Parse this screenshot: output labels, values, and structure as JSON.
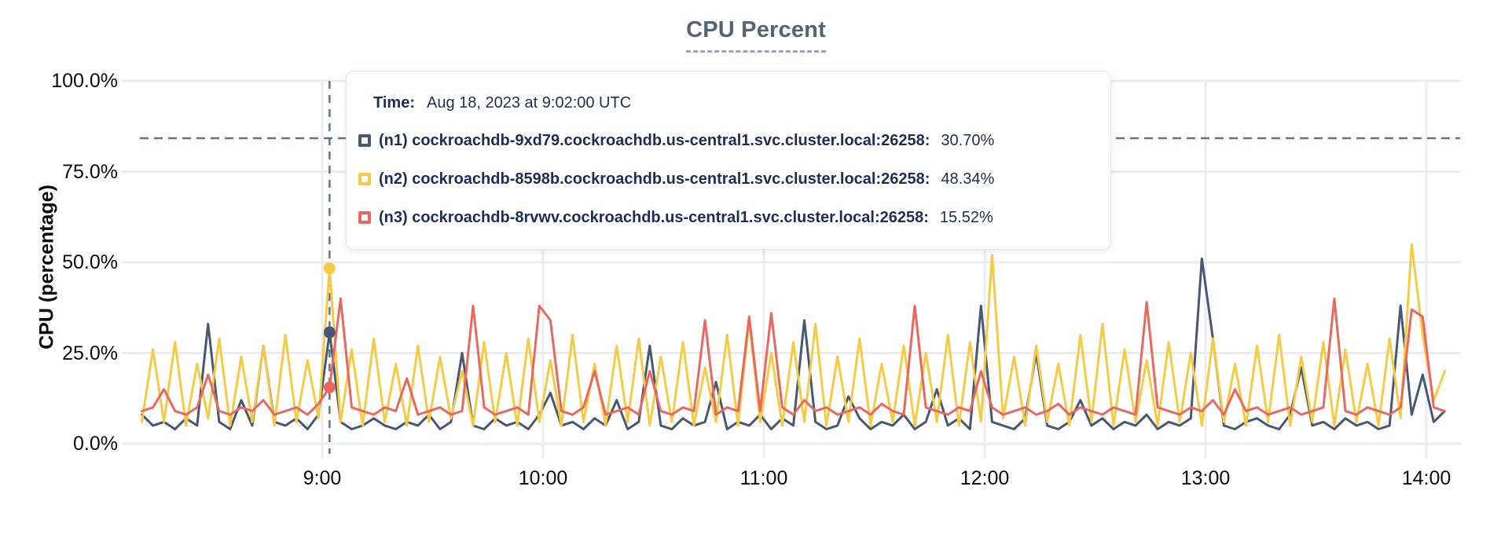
{
  "title": "CPU Percent",
  "axes": {
    "y_label": "CPU (percentage)",
    "y_ticks": [
      "100.0%",
      "75.0%",
      "50.0%",
      "25.0%",
      "0.0%"
    ],
    "x_ticks": [
      "9:00",
      "10:00",
      "11:00",
      "12:00",
      "13:00",
      "14:00"
    ]
  },
  "tooltip": {
    "time_label": "Time:",
    "time_value": "Aug 18, 2023 at 9:02:00 UTC",
    "rows": [
      {
        "id": "n1",
        "label": "(n1) cockroachdb-9xd79.cockroachdb.us-central1.svc.cluster.local:26258:",
        "value": "30.70%",
        "color": "#475872"
      },
      {
        "id": "n2",
        "label": "(n2) cockroachdb-8598b.cockroachdb.us-central1.svc.cluster.local:26258:",
        "value": "48.34%",
        "color": "#F5CB45"
      },
      {
        "id": "n3",
        "label": "(n3) cockroachdb-8rvwv.cockroachdb.us-central1.svc.cluster.local:26258:",
        "value": "15.52%",
        "color": "#E8685F"
      }
    ]
  },
  "colors": {
    "title_slate": "#556379",
    "grid": "#ececec",
    "dashed_guides": "#5f7588",
    "tooltip_text": "#1b2e55",
    "axis_text": "#0a0a0a"
  },
  "chart_data": {
    "type": "line",
    "title": "CPU Percent",
    "xlabel": "",
    "ylabel": "CPU (percentage)",
    "ylim": [
      0,
      100
    ],
    "grid": true,
    "y_tick_values": [
      0,
      25,
      50,
      75,
      100
    ],
    "y_tick_labels": [
      "0.0%",
      "25.0%",
      "50.0%",
      "75.0%",
      "100.0%"
    ],
    "x_tick_labels": [
      "9:00",
      "10:00",
      "11:00",
      "12:00",
      "13:00",
      "14:00"
    ],
    "x_tick_minutes": [
      540,
      600,
      660,
      720,
      780,
      840
    ],
    "start_minutes": 491,
    "step_minutes": 3,
    "threshold_percent": 84.2,
    "hover": {
      "minutes": 542,
      "time": "Aug 18, 2023 at 9:02:00 UTC",
      "values": {
        "n1": 30.7,
        "n2": 48.34,
        "n3": 15.52
      }
    },
    "series": [
      {
        "id": "n1",
        "name": "(n1) cockroachdb-9xd79.cockroachdb.us-central1.svc.cluster.local:26258",
        "color": "#475872",
        "values": [
          8,
          5,
          6,
          4,
          7,
          5,
          33,
          6,
          4,
          12,
          5,
          27,
          6,
          5,
          7,
          4,
          8,
          30.7,
          6,
          4,
          5,
          7,
          5,
          4,
          6,
          5,
          8,
          4,
          6,
          25,
          5,
          4,
          7,
          5,
          6,
          4,
          8,
          14,
          5,
          6,
          4,
          7,
          5,
          12,
          4,
          6,
          27,
          5,
          4,
          7,
          5,
          6,
          17,
          4,
          6,
          5,
          8,
          4,
          7,
          5,
          34,
          6,
          4,
          5,
          13,
          7,
          4,
          6,
          5,
          8,
          4,
          6,
          15,
          5,
          7,
          4,
          38,
          6,
          5,
          4,
          7,
          25,
          5,
          4,
          6,
          12,
          5,
          7,
          4,
          6,
          5,
          8,
          4,
          6,
          5,
          7,
          51,
          29,
          5,
          4,
          6,
          7,
          5,
          4,
          8,
          21,
          5,
          6,
          4,
          7,
          5,
          6,
          4,
          5,
          38,
          8,
          19,
          6,
          9
        ]
      },
      {
        "id": "n2",
        "name": "(n2) cockroachdb-8598b.cockroachdb.us-central1.svc.cluster.local:26258",
        "color": "#F5CB45",
        "values": [
          6,
          26,
          6,
          28,
          5,
          22,
          7,
          29,
          5,
          24,
          6,
          27,
          5,
          30,
          6,
          23,
          7,
          48.34,
          6,
          26,
          5,
          29,
          6,
          22,
          5,
          27,
          6,
          24,
          7,
          20,
          5,
          28,
          6,
          25,
          5,
          29,
          6,
          23,
          5,
          30,
          6,
          22,
          5,
          27,
          6,
          29,
          5,
          24,
          6,
          28,
          5,
          21,
          6,
          30,
          5,
          34,
          6,
          25,
          5,
          28,
          6,
          33,
          5,
          24,
          6,
          29,
          5,
          22,
          6,
          27,
          5,
          25,
          6,
          30,
          5,
          28,
          6,
          52,
          7,
          24,
          5,
          27,
          6,
          22,
          5,
          30,
          6,
          33,
          5,
          26,
          6,
          23,
          5,
          28,
          6,
          25,
          5,
          29,
          6,
          22,
          5,
          27,
          6,
          30,
          5,
          24,
          6,
          28,
          5,
          26,
          6,
          22,
          5,
          29,
          7,
          55,
          30,
          12,
          20
        ]
      },
      {
        "id": "n3",
        "name": "(n3) cockroachdb-8rvwv.cockroachdb.us-central1.svc.cluster.local:26258",
        "color": "#E8685F",
        "values": [
          9,
          10,
          15,
          9,
          8,
          10,
          19,
          9,
          8,
          10,
          9,
          12,
          8,
          9,
          10,
          8,
          11,
          15.52,
          40,
          10,
          9,
          8,
          10,
          9,
          18,
          8,
          9,
          10,
          8,
          9,
          38,
          10,
          8,
          9,
          10,
          8,
          38,
          34,
          9,
          8,
          10,
          20,
          8,
          9,
          10,
          8,
          20,
          9,
          8,
          10,
          9,
          34,
          8,
          10,
          9,
          35,
          9,
          36,
          10,
          8,
          12,
          9,
          10,
          8,
          9,
          10,
          8,
          11,
          9,
          8,
          38,
          10,
          9,
          8,
          10,
          9,
          20,
          10,
          8,
          9,
          10,
          8,
          9,
          11,
          8,
          10,
          9,
          8,
          10,
          9,
          8,
          39,
          10,
          9,
          8,
          10,
          9,
          12,
          8,
          15,
          9,
          10,
          8,
          9,
          10,
          8,
          9,
          10,
          40,
          9,
          8,
          10,
          9,
          8,
          10,
          37,
          35,
          10,
          9
        ]
      }
    ]
  }
}
